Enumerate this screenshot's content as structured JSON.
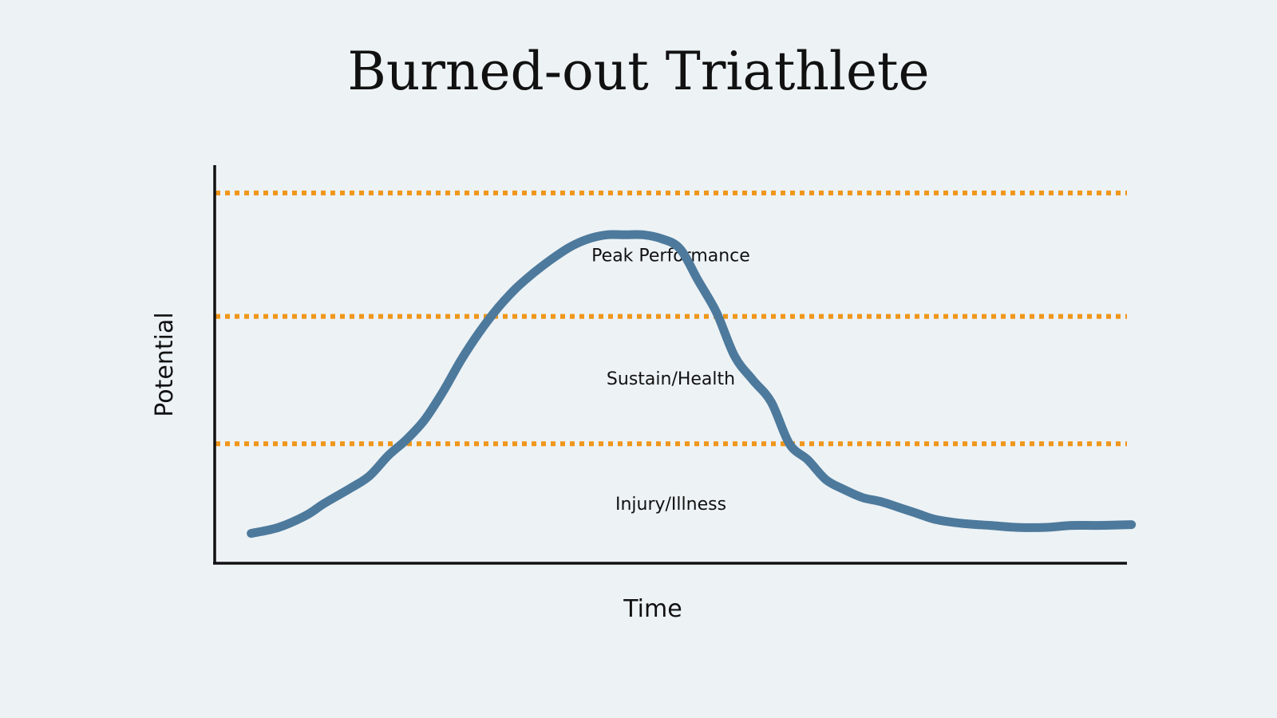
{
  "chart_data": {
    "type": "line",
    "title": "Burned-out Triathlete",
    "xlabel": "Time",
    "ylabel": "Potential",
    "xlim": [
      0,
      100
    ],
    "ylim": [
      0,
      100
    ],
    "grid": false,
    "tick_labels": false,
    "colors": {
      "line": "#4d7a9c",
      "threshold": "#f0961a",
      "axis": "#111111",
      "background": "#edf2f5"
    },
    "thresholds": [
      30,
      62,
      93
    ],
    "zones": [
      {
        "label": "Peak Performance",
        "y": 77.5
      },
      {
        "label": "Sustain/Health",
        "y": 46.5
      },
      {
        "label": "Injury/Illness",
        "y": 15
      }
    ],
    "series": [
      {
        "x": [
          4,
          7,
          10,
          12,
          15,
          17,
          19,
          21,
          23,
          25,
          27,
          29,
          31,
          33,
          35,
          37,
          39,
          41,
          43,
          45,
          47,
          49,
          51,
          53,
          55,
          57,
          59,
          61,
          63,
          65,
          67,
          69,
          71,
          73,
          75,
          77,
          79,
          82,
          85,
          88,
          91,
          94,
          97,
          100.5
        ],
        "y": [
          7.5,
          9,
          12,
          15,
          19,
          22,
          27,
          31,
          36,
          43,
          51,
          58,
          64,
          69,
          73,
          76.5,
          79.5,
          81.5,
          82.5,
          82.5,
          82.5,
          81.5,
          79,
          71,
          63,
          52,
          46,
          40.5,
          30,
          26,
          21,
          18.5,
          16.5,
          15.5,
          14,
          12.5,
          11,
          10,
          9.5,
          9,
          9,
          9.5,
          9.5,
          9.7
        ]
      }
    ]
  }
}
